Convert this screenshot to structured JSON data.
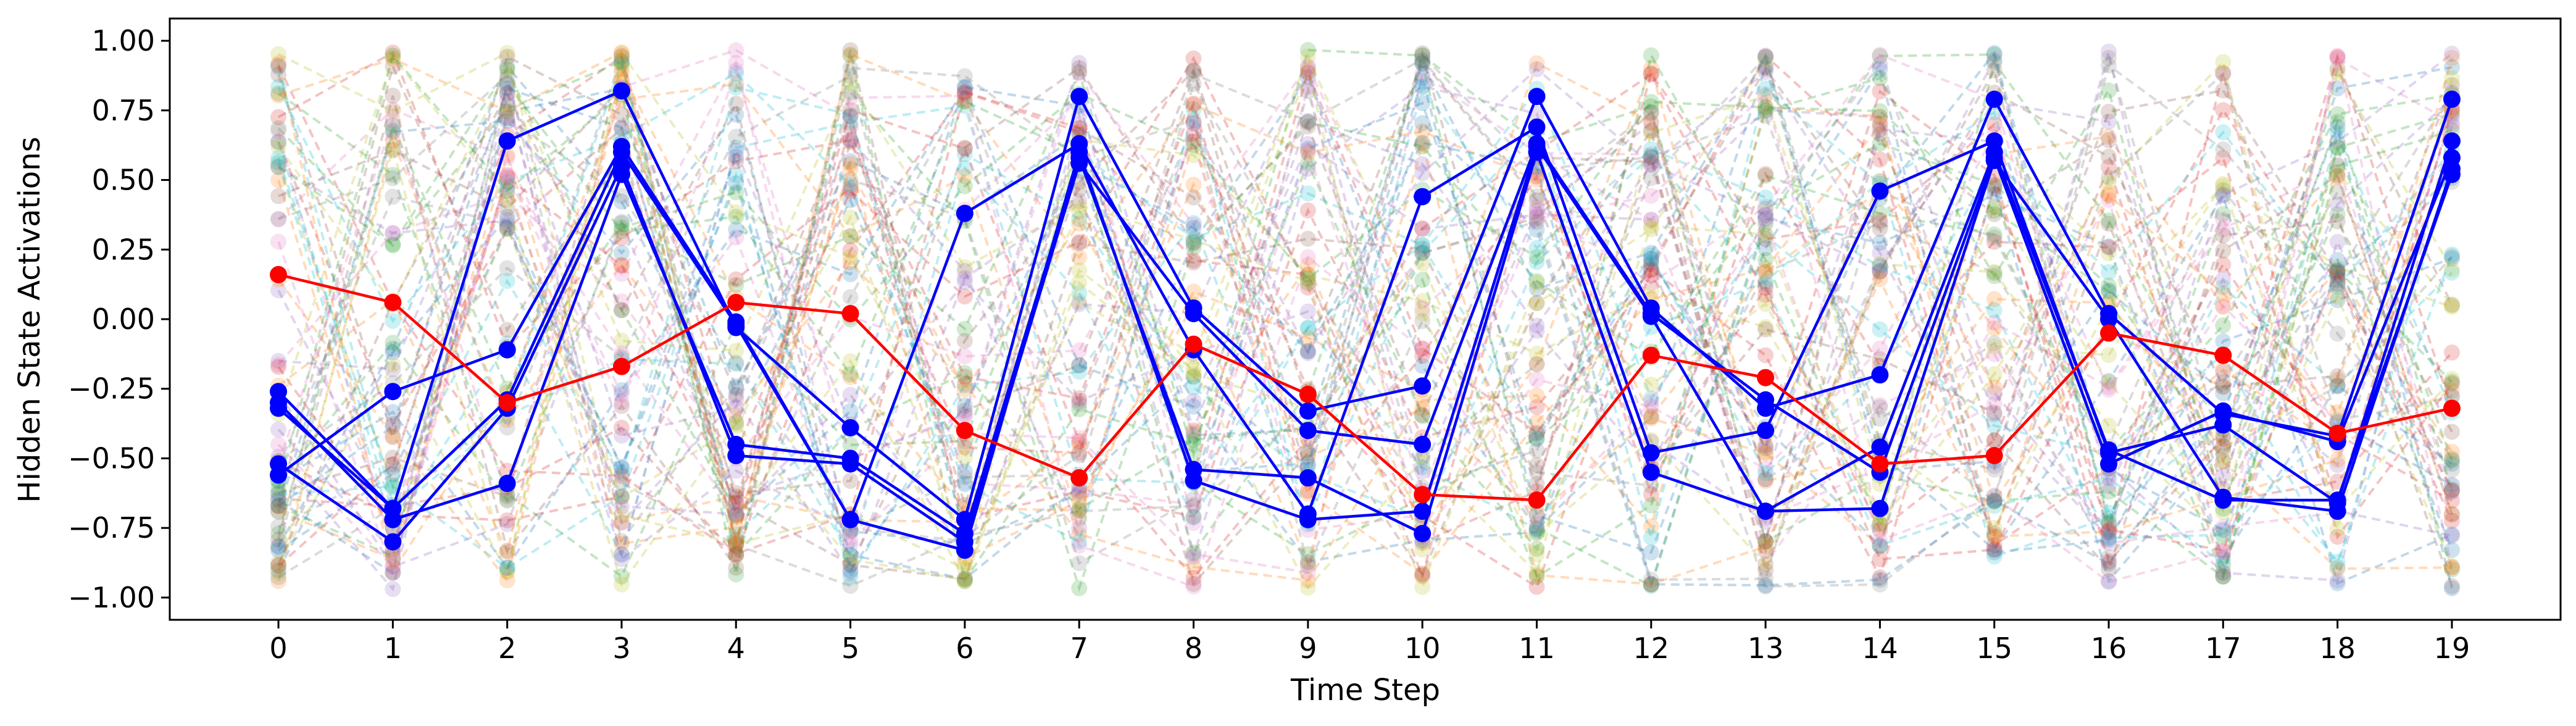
{
  "chart_data": {
    "type": "line",
    "title": "",
    "xlabel": "Time Step",
    "ylabel": "Hidden State Activations",
    "x": [
      0,
      1,
      2,
      3,
      4,
      5,
      6,
      7,
      8,
      9,
      10,
      11,
      12,
      13,
      14,
      15,
      16,
      17,
      18,
      19
    ],
    "xlim": [
      -0.95,
      19.95
    ],
    "ylim": [
      -1.08,
      1.08
    ],
    "yticks": [
      -1.0,
      -0.75,
      -0.5,
      -0.25,
      0.0,
      0.25,
      0.5,
      0.75,
      1.0
    ],
    "ytick_labels": [
      "−1.00",
      "−0.75",
      "−0.50",
      "−0.25",
      "0.00",
      "0.25",
      "0.50",
      "0.75",
      "1.00"
    ],
    "grid": false,
    "background_series": {
      "description_visible": "many faint dashed multicolored hidden-unit traces",
      "style": "dashed",
      "count": 64,
      "value_range": [
        -0.98,
        0.98
      ],
      "colors": [
        "#1f77b4",
        "#ff7f0e",
        "#2ca02c",
        "#d62728",
        "#9467bd",
        "#8c564b",
        "#e377c2",
        "#7f7f7f",
        "#bcbd22",
        "#17becf"
      ]
    },
    "highlighted_series": [
      {
        "name": "red",
        "color": "#ff0000",
        "values": [
          0.16,
          0.06,
          -0.3,
          -0.17,
          0.06,
          0.02,
          -0.4,
          -0.57,
          -0.09,
          -0.27,
          -0.63,
          -0.65,
          -0.13,
          -0.21,
          -0.52,
          -0.49,
          -0.05,
          -0.13,
          -0.41,
          -0.32
        ]
      },
      {
        "name": "blue-1",
        "color": "#0000ff",
        "values": [
          -0.26,
          -0.68,
          0.64,
          0.82,
          -0.03,
          -0.39,
          -0.72,
          0.8,
          0.04,
          -0.33,
          -0.24,
          0.8,
          0.04,
          -0.32,
          -0.2,
          0.79,
          0.02,
          -0.34,
          -0.42,
          0.79
        ]
      },
      {
        "name": "blue-2",
        "color": "#0000ff",
        "values": [
          -0.56,
          -0.26,
          -0.11,
          0.62,
          -0.01,
          -0.72,
          0.38,
          0.63,
          -0.11,
          -0.7,
          0.44,
          0.69,
          -0.48,
          -0.4,
          0.46,
          0.64,
          -0.48,
          -0.38,
          -0.66,
          0.64
        ]
      },
      {
        "name": "blue-3",
        "color": "#0000ff",
        "values": [
          -0.3,
          -0.72,
          -0.59,
          0.52,
          -0.45,
          -0.5,
          -0.77,
          0.58,
          -0.54,
          -0.57,
          -0.77,
          0.6,
          -0.55,
          -0.69,
          -0.46,
          0.6,
          -0.47,
          -0.65,
          -0.65,
          0.52
        ]
      },
      {
        "name": "blue-4",
        "color": "#0000ff",
        "values": [
          -0.52,
          -0.8,
          -0.32,
          0.55,
          -0.49,
          -0.52,
          -0.8,
          0.56,
          0.02,
          -0.4,
          -0.45,
          0.63,
          0.02,
          -0.29,
          -0.55,
          0.58,
          -0.52,
          -0.33,
          -0.44,
          0.58
        ]
      },
      {
        "name": "blue-5",
        "color": "#0000ff",
        "values": [
          -0.32,
          -0.68,
          -0.29,
          0.6,
          -0.02,
          -0.72,
          -0.83,
          0.6,
          -0.58,
          -0.72,
          -0.69,
          0.62,
          0.01,
          -0.69,
          -0.68,
          0.57,
          0.0,
          -0.64,
          -0.69,
          0.54
        ]
      }
    ]
  }
}
